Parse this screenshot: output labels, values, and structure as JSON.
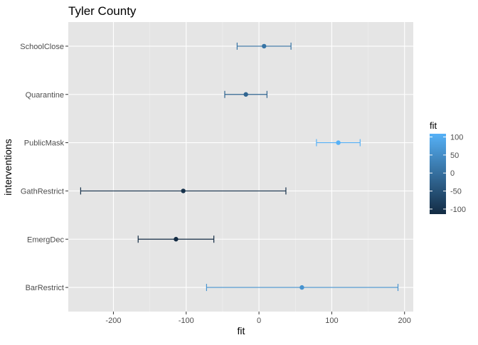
{
  "chart_data": {
    "type": "errorbar",
    "title": "Tyler County",
    "xlabel": "fit",
    "ylabel": "interventions",
    "xlim": [
      -262,
      212
    ],
    "xticks": [
      -200,
      -100,
      0,
      100,
      200
    ],
    "xtick_labels": [
      "-200",
      "-100",
      "0",
      "100",
      "200"
    ],
    "categories": [
      "SchoolClose",
      "Quarantine",
      "PublicMask",
      "GathRestrict",
      "EmergDec",
      "BarRestrict"
    ],
    "fit": [
      7,
      -18,
      109,
      -104,
      -114,
      59
    ],
    "lower": [
      -30,
      -47,
      79,
      -245,
      -166,
      -72
    ],
    "upper": [
      44,
      11,
      139,
      37,
      -62,
      191
    ],
    "grid": true,
    "panel_background": "#e5e5e5",
    "legend": {
      "title": "fit",
      "position": "right",
      "labels": [
        "100",
        "50",
        "0",
        "-50",
        "-100"
      ],
      "values": [
        100,
        50,
        0,
        -50,
        -100
      ],
      "range": [
        -114,
        109
      ],
      "color_low": "#132b43",
      "color_high": "#56b1f7"
    }
  }
}
